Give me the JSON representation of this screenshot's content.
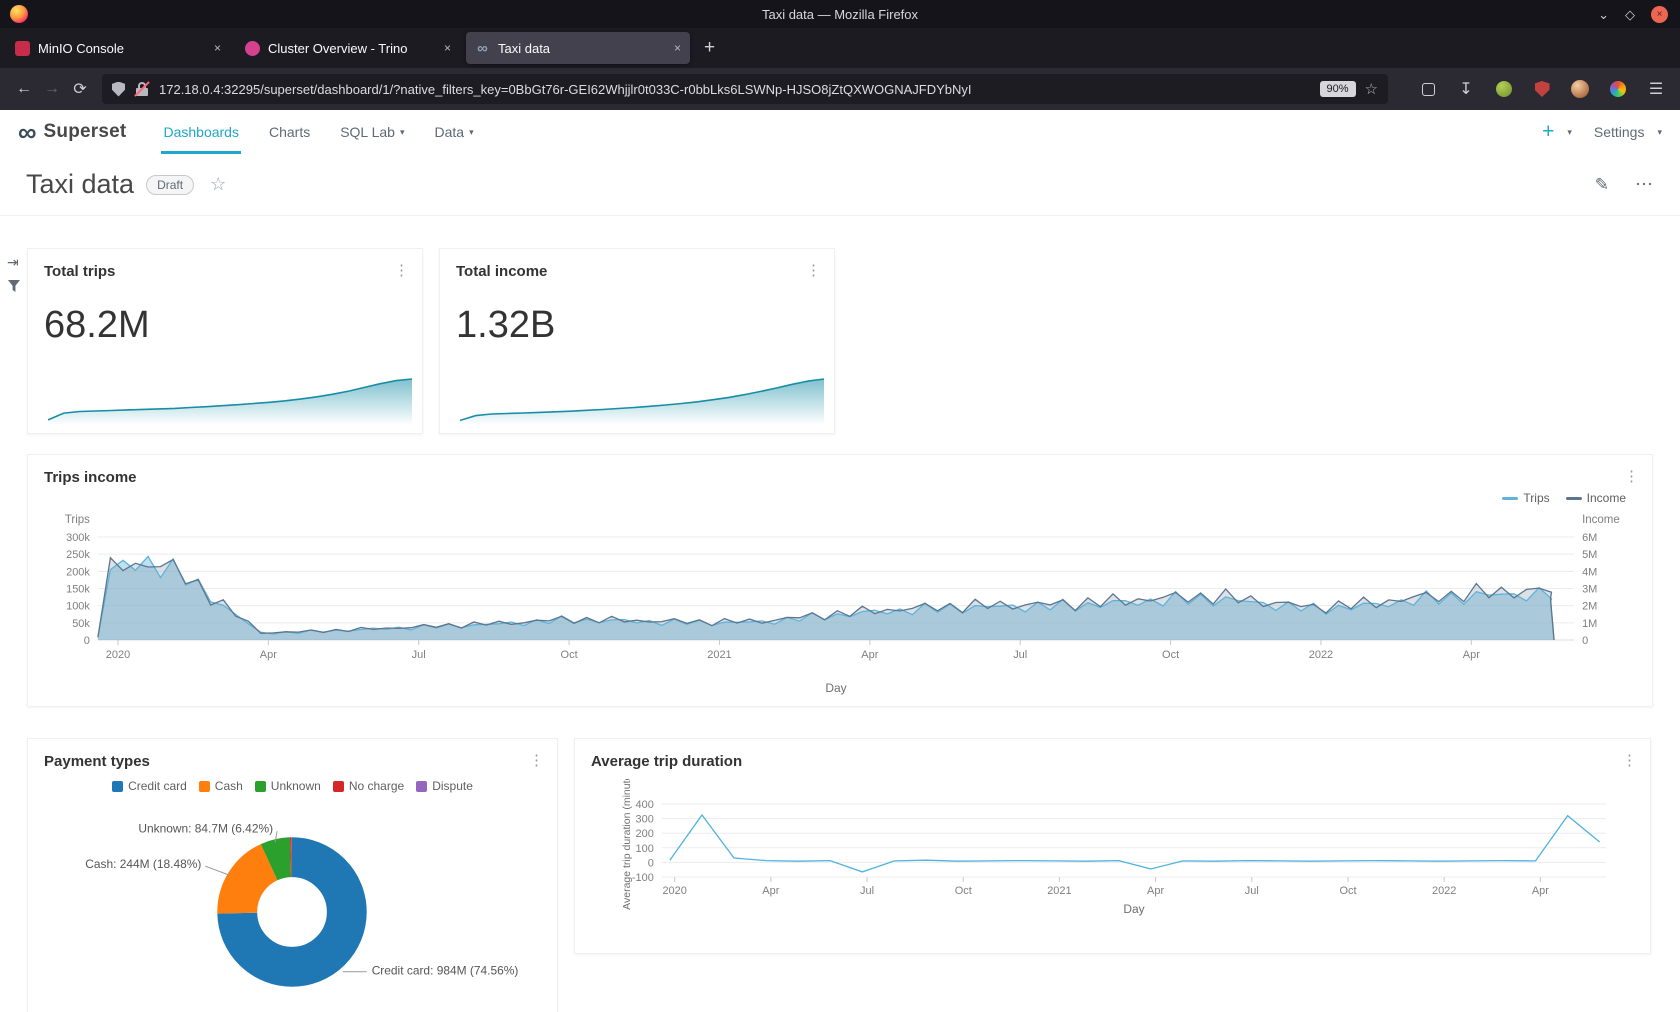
{
  "window": {
    "title": "Taxi data — Mozilla Firefox"
  },
  "browser": {
    "tabs": [
      {
        "title": "MinIO Console"
      },
      {
        "title": "Cluster Overview - Trino"
      },
      {
        "title": "Taxi data"
      }
    ],
    "url": "172.18.0.4:32295/superset/dashboard/1/?native_filters_key=0BbGt76r-GEI62Whjjlr0t033C-r0bbLks6LSWNp-HJSO8jZtQXWOGNAJFDYbNyI",
    "zoom": "90%"
  },
  "icons": {
    "back": "←",
    "forward": "→",
    "reload": "⟳",
    "close": "×",
    "chevron_down": "⌄",
    "diamond": "◇",
    "star": "☆",
    "menu": "☰",
    "kebab": "⋮",
    "more": "⋯",
    "pencil": "✎",
    "caret": "▾",
    "plus": "+",
    "download": "↧",
    "infinity": "∞",
    "expand": "⇥"
  },
  "superset": {
    "brand": "Superset",
    "nav": [
      {
        "label": "Dashboards",
        "active": true
      },
      {
        "label": "Charts"
      },
      {
        "label": "SQL Lab",
        "caret": true
      },
      {
        "label": "Data",
        "caret": true
      }
    ],
    "settings": "Settings"
  },
  "dashboard": {
    "title": "Taxi data",
    "badge": "Draft"
  },
  "colors": {
    "spark_line": "#178ea6",
    "superset_teal": "#1fa8c9"
  },
  "cards": {
    "total_trips": {
      "title": "Total trips",
      "value": "68.2M",
      "spark": [
        2,
        8.5,
        10,
        10.5,
        11,
        11.5,
        12,
        12.5,
        13,
        13.8,
        14.6,
        15.5,
        16.5,
        17.6,
        18.8,
        20.2,
        22,
        24,
        26.5,
        29.5,
        33,
        36.5,
        39.5,
        41
      ]
    },
    "total_income": {
      "title": "Total income",
      "value": "1.32B",
      "spark": [
        1.5,
        6,
        7.5,
        8,
        8.5,
        9,
        9.6,
        10.2,
        11,
        11.8,
        12.7,
        13.7,
        14.8,
        16,
        17.4,
        19,
        21,
        23.2,
        25.8,
        28.8,
        32,
        35.5,
        38.5,
        40.5
      ]
    }
  },
  "chart_data": [
    {
      "id": "trips_income",
      "type": "area",
      "title": "Trips income",
      "xlabel": "Day",
      "x_ticks": [
        "2020",
        "Apr",
        "Jul",
        "Oct",
        "2021",
        "Apr",
        "Jul",
        "Oct",
        "2022",
        "Apr"
      ],
      "x_tick_month_index": [
        0,
        3,
        6,
        9,
        12,
        15,
        18,
        21,
        24,
        27
      ],
      "months": 29,
      "legend_position": "top-right",
      "grid": true,
      "y_left": {
        "label": "Trips",
        "ticks": [
          "0",
          "50k",
          "100k",
          "150k",
          "200k",
          "250k",
          "300k"
        ],
        "max": 300,
        "unit": "thousands"
      },
      "y_right": {
        "label": "Income",
        "ticks": [
          "0",
          "1M",
          "2M",
          "3M",
          "4M",
          "5M",
          "6M"
        ],
        "max": 6,
        "unit": "millions"
      },
      "series": [
        {
          "name": "Trips",
          "color": "#5fb3d9",
          "fill": "rgba(127,198,227,0.5)",
          "monthly": [
            205,
            228,
            128,
            20,
            24,
            30,
            36,
            42,
            48,
            58,
            56,
            52,
            50,
            52,
            66,
            78,
            88,
            94,
            97,
            99,
            106,
            116,
            120,
            106,
            90,
            98,
            116,
            126,
            133
          ]
        },
        {
          "name": "Income",
          "color": "#5e7590",
          "fill": "rgba(96,118,142,0.22)",
          "monthly": [
            4.1,
            4.6,
            2.6,
            0.42,
            0.5,
            0.62,
            0.75,
            0.88,
            1.0,
            1.2,
            1.16,
            1.1,
            1.05,
            1.1,
            1.4,
            1.65,
            1.85,
            1.98,
            2.05,
            2.1,
            2.25,
            2.45,
            2.55,
            2.25,
            1.9,
            2.1,
            2.45,
            2.68,
            2.85
          ]
        }
      ]
    },
    {
      "id": "payment_types",
      "type": "pie",
      "title": "Payment types",
      "legend": [
        {
          "label": "Credit card",
          "color": "#1f77b4"
        },
        {
          "label": "Cash",
          "color": "#ff7f0e"
        },
        {
          "label": "Unknown",
          "color": "#2ca02c"
        },
        {
          "label": "No charge",
          "color": "#d62728"
        },
        {
          "label": "Dispute",
          "color": "#9467bd"
        }
      ],
      "slices": [
        {
          "label": "Credit card",
          "value": "984M",
          "pct": 74.56,
          "color": "#1f77b4"
        },
        {
          "label": "Cash",
          "value": "244M",
          "pct": 18.48,
          "color": "#ff7f0e"
        },
        {
          "label": "Unknown",
          "value": "84.7M",
          "pct": 6.42,
          "color": "#2ca02c"
        },
        {
          "label": "No charge",
          "pct": 0.35,
          "color": "#d62728"
        },
        {
          "label": "Dispute",
          "pct": 0.19,
          "color": "#9467bd"
        }
      ],
      "annotations": [
        "Unknown: 84.7M (6.42%)",
        "Cash: 244M (18.48%)",
        "Credit card: 984M (74.56%)"
      ]
    },
    {
      "id": "avg_trip_duration",
      "type": "line",
      "title": "Average trip duration",
      "ylabel": "Average trip duration (minute)",
      "xlabel": "Day",
      "x_ticks": [
        "2020",
        "Apr",
        "Jul",
        "Oct",
        "2021",
        "Apr",
        "Jul",
        "Oct",
        "2022",
        "Apr"
      ],
      "x_tick_month_index": [
        0,
        3,
        6,
        9,
        12,
        15,
        18,
        21,
        24,
        27
      ],
      "y_ticks": [
        "-100",
        "0",
        "100",
        "200",
        "300",
        "400"
      ],
      "y_min": -100,
      "y_max": 400,
      "color": "#4fb3dd",
      "values": [
        15,
        325,
        30,
        12,
        8,
        12,
        -65,
        10,
        15,
        8,
        10,
        12,
        10,
        8,
        12,
        -45,
        10,
        8,
        12,
        10,
        8,
        10,
        12,
        10,
        8,
        10,
        12,
        10,
        320,
        140
      ]
    }
  ]
}
